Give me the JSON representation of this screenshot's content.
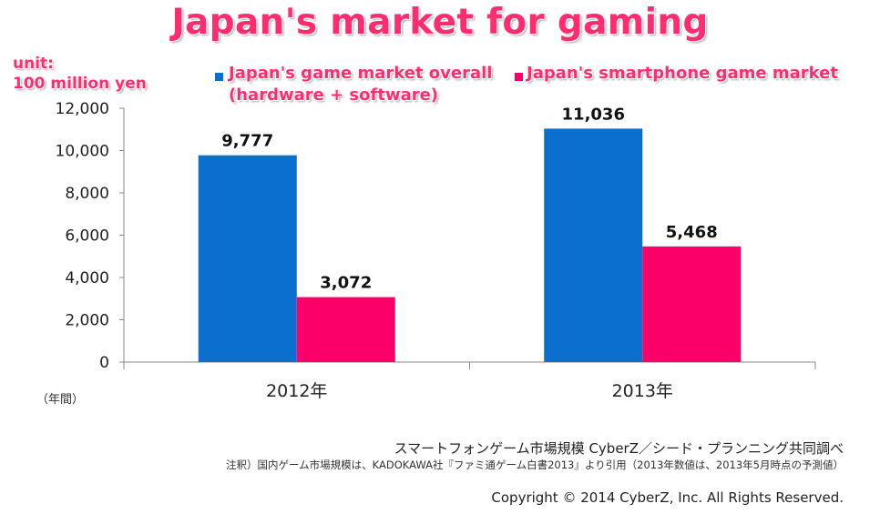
{
  "title": "Japan's market for gaming",
  "unit_line1": "unit:",
  "unit_line2": "100 million yen",
  "year_unit_label": "（年間）",
  "source_main": "スマートフォンゲーム市場規模  CyberZ／シード・プランニング共同調べ",
  "source_note": "注釈）国内ゲーム市場規模は、KADOKAWA社『ファミ通ゲーム白書2013』より引用（2013年数値は、2013年5月時点の予測値）",
  "copyright": "Copyright © 2014 CyberZ, Inc.  All Rights Reserved.",
  "legend": {
    "series1_line1": "Japan's game market overall",
    "series1_line2": "(hardware + software)",
    "series2": "Japan's smartphone game market"
  },
  "colors": {
    "series1": "#0a6fcf",
    "series2": "#fb0068",
    "overlay_text": "#ff2d6f",
    "axis": "#888888"
  },
  "chart_data": {
    "type": "bar",
    "categories": [
      "2012年",
      "2013年"
    ],
    "series": [
      {
        "name": "Japan's game market overall (hardware + software)",
        "values": [
          9777,
          11036
        ],
        "labels": [
          "9,777",
          "11,036"
        ]
      },
      {
        "name": "Japan's smartphone game market",
        "values": [
          3072,
          5468
        ],
        "labels": [
          "3,072",
          "5,468"
        ]
      }
    ],
    "yticks": [
      0,
      2000,
      4000,
      6000,
      8000,
      10000,
      12000
    ],
    "ytick_labels": [
      "0",
      "2,000",
      "4,000",
      "6,000",
      "8,000",
      "10,000",
      "12,000"
    ],
    "ylim": [
      0,
      12000
    ],
    "grid": false,
    "legend_position": "top"
  }
}
